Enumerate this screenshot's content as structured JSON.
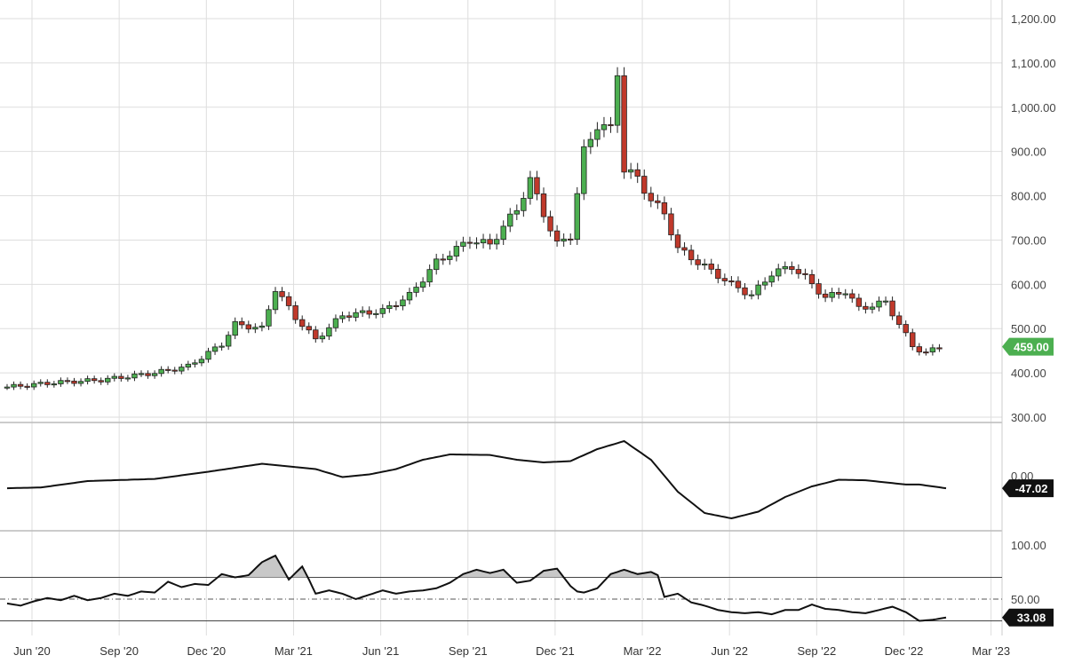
{
  "chart_data": [
    {
      "type": "candlestick",
      "panel": "price",
      "ylim": [
        300,
        1200
      ],
      "y_ticks": [
        "300.00",
        "400.00",
        "500.00",
        "600.00",
        "700.00",
        "800.00",
        "900.00",
        "1,000.00",
        "1,100.00",
        "1,200.00"
      ],
      "last_value_label": "459.00",
      "up_color": "#4caf50",
      "down_color": "#c0392b",
      "label_color": "#4caf50",
      "grid": true,
      "keypoints": [
        {
          "week": 0,
          "close": 368
        },
        {
          "week": 7,
          "close": 378
        },
        {
          "week": 14,
          "close": 384
        },
        {
          "week": 22,
          "close": 400
        },
        {
          "week": 27,
          "close": 415
        },
        {
          "week": 32,
          "close": 465
        },
        {
          "week": 34,
          "close": 510
        },
        {
          "week": 38,
          "close": 500
        },
        {
          "week": 40,
          "close": 590
        },
        {
          "week": 43,
          "close": 525
        },
        {
          "week": 46,
          "close": 475
        },
        {
          "week": 50,
          "close": 530
        },
        {
          "week": 56,
          "close": 540
        },
        {
          "week": 60,
          "close": 575
        },
        {
          "week": 64,
          "close": 650
        },
        {
          "week": 69,
          "close": 700
        },
        {
          "week": 72,
          "close": 690
        },
        {
          "week": 76,
          "close": 770
        },
        {
          "week": 78,
          "close": 835
        },
        {
          "week": 80,
          "close": 760
        },
        {
          "week": 82,
          "close": 690
        },
        {
          "week": 84,
          "close": 710
        },
        {
          "week": 86,
          "close": 900
        },
        {
          "week": 88,
          "close": 960
        },
        {
          "week": 90,
          "close": 950
        },
        {
          "week": 91,
          "close": 1080
        },
        {
          "week": 92,
          "close": 860
        },
        {
          "week": 94,
          "close": 840
        },
        {
          "week": 96,
          "close": 790
        },
        {
          "week": 98,
          "close": 760
        },
        {
          "week": 100,
          "close": 680
        },
        {
          "week": 104,
          "close": 640
        },
        {
          "week": 108,
          "close": 600
        },
        {
          "week": 111,
          "close": 575
        },
        {
          "week": 114,
          "close": 625
        },
        {
          "week": 117,
          "close": 640
        },
        {
          "week": 119,
          "close": 615
        },
        {
          "week": 122,
          "close": 570
        },
        {
          "week": 125,
          "close": 585
        },
        {
          "week": 127,
          "close": 545
        },
        {
          "week": 131,
          "close": 560
        },
        {
          "week": 133,
          "close": 510
        },
        {
          "week": 135,
          "close": 460
        },
        {
          "week": 137,
          "close": 445
        },
        {
          "week": 139,
          "close": 459
        }
      ]
    },
    {
      "type": "line",
      "panel": "oscillator",
      "y_ticks": [
        "0.00"
      ],
      "last_value_label": "-47.02",
      "label_color": "#111111",
      "keypoints": [
        {
          "week": 0,
          "value": -47
        },
        {
          "week": 5,
          "value": -44
        },
        {
          "week": 12,
          "value": -20
        },
        {
          "week": 22,
          "value": -12
        },
        {
          "week": 30,
          "value": 15
        },
        {
          "week": 38,
          "value": 45
        },
        {
          "week": 46,
          "value": 25
        },
        {
          "week": 50,
          "value": -5
        },
        {
          "week": 54,
          "value": 5
        },
        {
          "week": 58,
          "value": 25
        },
        {
          "week": 62,
          "value": 60
        },
        {
          "week": 66,
          "value": 80
        },
        {
          "week": 72,
          "value": 78
        },
        {
          "week": 76,
          "value": 60
        },
        {
          "week": 80,
          "value": 50
        },
        {
          "week": 84,
          "value": 55
        },
        {
          "week": 88,
          "value": 100
        },
        {
          "week": 92,
          "value": 130
        },
        {
          "week": 96,
          "value": 60
        },
        {
          "week": 100,
          "value": -60
        },
        {
          "week": 104,
          "value": -140
        },
        {
          "week": 108,
          "value": -160
        },
        {
          "week": 112,
          "value": -135
        },
        {
          "week": 116,
          "value": -80
        },
        {
          "week": 120,
          "value": -40
        },
        {
          "week": 124,
          "value": -15
        },
        {
          "week": 128,
          "value": -17
        },
        {
          "week": 134,
          "value": -33
        },
        {
          "week": 136,
          "value": -33
        },
        {
          "week": 140,
          "value": -47
        }
      ]
    },
    {
      "type": "area",
      "panel": "rsi",
      "ylim": [
        0,
        100
      ],
      "y_ticks": [
        "100.00",
        "50.00"
      ],
      "upper_level": 70,
      "mid_level": 50,
      "lower_level": 30,
      "last_value_label": "33.08",
      "label_color": "#111111",
      "keypoints": [
        {
          "week": 0,
          "value": 46
        },
        {
          "week": 2,
          "value": 44
        },
        {
          "week": 4,
          "value": 48
        },
        {
          "week": 6,
          "value": 51
        },
        {
          "week": 8,
          "value": 49
        },
        {
          "week": 10,
          "value": 53
        },
        {
          "week": 12,
          "value": 49
        },
        {
          "week": 14,
          "value": 51
        },
        {
          "week": 16,
          "value": 55
        },
        {
          "week": 18,
          "value": 53
        },
        {
          "week": 20,
          "value": 57
        },
        {
          "week": 22,
          "value": 56
        },
        {
          "week": 24,
          "value": 66
        },
        {
          "week": 26,
          "value": 61
        },
        {
          "week": 28,
          "value": 64
        },
        {
          "week": 30,
          "value": 63
        },
        {
          "week": 32,
          "value": 73
        },
        {
          "week": 34,
          "value": 70
        },
        {
          "week": 36,
          "value": 72
        },
        {
          "week": 38,
          "value": 84
        },
        {
          "week": 40,
          "value": 90
        },
        {
          "week": 42,
          "value": 68
        },
        {
          "week": 44,
          "value": 80
        },
        {
          "week": 45,
          "value": 68
        },
        {
          "week": 46,
          "value": 55
        },
        {
          "week": 48,
          "value": 58
        },
        {
          "week": 50,
          "value": 55
        },
        {
          "week": 52,
          "value": 50
        },
        {
          "week": 54,
          "value": 54
        },
        {
          "week": 56,
          "value": 58
        },
        {
          "week": 58,
          "value": 55
        },
        {
          "week": 60,
          "value": 57
        },
        {
          "week": 62,
          "value": 58
        },
        {
          "week": 64,
          "value": 60
        },
        {
          "week": 66,
          "value": 65
        },
        {
          "week": 68,
          "value": 73
        },
        {
          "week": 70,
          "value": 77
        },
        {
          "week": 72,
          "value": 74
        },
        {
          "week": 74,
          "value": 77
        },
        {
          "week": 76,
          "value": 65
        },
        {
          "week": 78,
          "value": 67
        },
        {
          "week": 80,
          "value": 76
        },
        {
          "week": 82,
          "value": 78
        },
        {
          "week": 84,
          "value": 62
        },
        {
          "week": 85,
          "value": 57
        },
        {
          "week": 86,
          "value": 56
        },
        {
          "week": 88,
          "value": 60
        },
        {
          "week": 90,
          "value": 73
        },
        {
          "week": 92,
          "value": 77
        },
        {
          "week": 94,
          "value": 73
        },
        {
          "week": 96,
          "value": 75
        },
        {
          "week": 97,
          "value": 72
        },
        {
          "week": 98,
          "value": 52
        },
        {
          "week": 100,
          "value": 55
        },
        {
          "week": 102,
          "value": 47
        },
        {
          "week": 104,
          "value": 44
        },
        {
          "week": 106,
          "value": 40
        },
        {
          "week": 108,
          "value": 38
        },
        {
          "week": 110,
          "value": 37
        },
        {
          "week": 112,
          "value": 38
        },
        {
          "week": 114,
          "value": 36
        },
        {
          "week": 116,
          "value": 40
        },
        {
          "week": 118,
          "value": 40
        },
        {
          "week": 120,
          "value": 45
        },
        {
          "week": 122,
          "value": 41
        },
        {
          "week": 124,
          "value": 40
        },
        {
          "week": 126,
          "value": 38
        },
        {
          "week": 128,
          "value": 37
        },
        {
          "week": 130,
          "value": 40
        },
        {
          "week": 132,
          "value": 43
        },
        {
          "week": 134,
          "value": 38
        },
        {
          "week": 136,
          "value": 30
        },
        {
          "week": 138,
          "value": 31
        },
        {
          "week": 140,
          "value": 33
        }
      ]
    }
  ],
  "x_axis": {
    "ticks": [
      {
        "label": "Jun '20",
        "week": 0
      },
      {
        "label": "Sep '20",
        "week": 13
      },
      {
        "label": "Dec '20",
        "week": 26
      },
      {
        "label": "Mar '21",
        "week": 39
      },
      {
        "label": "Jun '21",
        "week": 52
      },
      {
        "label": "Sep '21",
        "week": 65
      },
      {
        "label": "Dec '21",
        "week": 78
      },
      {
        "label": "Mar '22",
        "week": 91
      },
      {
        "label": "Jun '22",
        "week": 104
      },
      {
        "label": "Sep '22",
        "week": 117
      },
      {
        "label": "Dec '22",
        "week": 130
      },
      {
        "label": "Mar '23",
        "week": 143
      }
    ]
  }
}
